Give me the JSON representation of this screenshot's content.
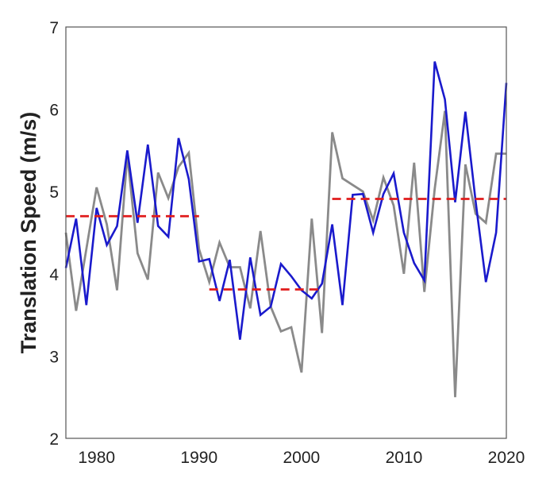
{
  "chart_data": {
    "type": "line",
    "title": "",
    "xlabel": "",
    "ylabel": "Translation Speed (m/s)",
    "xlim": [
      1977,
      2020
    ],
    "ylim": [
      2,
      7
    ],
    "grid": false,
    "x_ticks": [
      1980,
      1990,
      2000,
      2010,
      2020
    ],
    "y_ticks": [
      2,
      3,
      4,
      5,
      6,
      7
    ],
    "x_tick_labels": [
      "1980",
      "1990",
      "2000",
      "2010",
      "2020"
    ],
    "y_tick_labels": [
      "2",
      "3",
      "4",
      "5",
      "6",
      "7"
    ],
    "series": [
      {
        "name": "gray",
        "color": "#8a8a8a",
        "x": [
          1977,
          1978,
          1979,
          1980,
          1981,
          1982,
          1983,
          1984,
          1985,
          1986,
          1987,
          1988,
          1989,
          1990,
          1991,
          1992,
          1993,
          1994,
          1995,
          1996,
          1997,
          1998,
          1999,
          2000,
          2001,
          2002,
          2003,
          2004,
          2005,
          2006,
          2007,
          2008,
          2009,
          2010,
          2011,
          2012,
          2013,
          2014,
          2015,
          2016,
          2017,
          2018,
          2019,
          2020
        ],
        "values": [
          4.5,
          3.55,
          4.3,
          5.05,
          4.6,
          3.8,
          5.45,
          4.25,
          3.93,
          5.23,
          4.92,
          5.3,
          5.47,
          4.3,
          3.9,
          4.38,
          4.08,
          4.08,
          3.58,
          4.52,
          3.6,
          3.3,
          3.35,
          2.8,
          4.67,
          3.28,
          5.72,
          5.16,
          5.08,
          5.0,
          4.65,
          5.17,
          4.83,
          4.0,
          5.35,
          3.78,
          5.03,
          5.98,
          2.5,
          5.33,
          4.73,
          4.62,
          5.46,
          5.46
        ]
      },
      {
        "name": "blue",
        "color": "#1a1acc",
        "x": [
          1977,
          1978,
          1979,
          1980,
          1981,
          1982,
          1983,
          1984,
          1985,
          1986,
          1987,
          1988,
          1989,
          1990,
          1991,
          1992,
          1993,
          1994,
          1995,
          1996,
          1997,
          1998,
          1999,
          2000,
          2001,
          2002,
          2003,
          2004,
          2005,
          2006,
          2007,
          2008,
          2009,
          2010,
          2011,
          2012,
          2013,
          2014,
          2015,
          2016,
          2017,
          2018,
          2019,
          2020
        ],
        "values": [
          4.07,
          4.67,
          3.62,
          4.8,
          4.35,
          4.58,
          5.5,
          4.62,
          5.57,
          4.58,
          4.45,
          5.65,
          5.15,
          4.15,
          4.18,
          3.67,
          4.17,
          3.2,
          4.2,
          3.5,
          3.6,
          4.12,
          3.97,
          3.8,
          3.7,
          3.88,
          4.6,
          3.62,
          4.96,
          4.97,
          4.5,
          4.97,
          5.22,
          4.5,
          4.13,
          3.92,
          6.58,
          6.12,
          4.87,
          5.97,
          4.88,
          3.9,
          4.5,
          6.32
        ]
      }
    ],
    "reference_lines": [
      {
        "name": "mean-1977-1990",
        "color": "#e01b1b",
        "style": "dashed",
        "x": [
          1977,
          1990
        ],
        "value": 4.7
      },
      {
        "name": "mean-1991-2002",
        "color": "#e01b1b",
        "style": "dashed",
        "x": [
          1991,
          2002
        ],
        "value": 3.81
      },
      {
        "name": "mean-2003-2020",
        "color": "#e01b1b",
        "style": "dashed",
        "x": [
          2003,
          2020
        ],
        "value": 4.91
      }
    ]
  }
}
